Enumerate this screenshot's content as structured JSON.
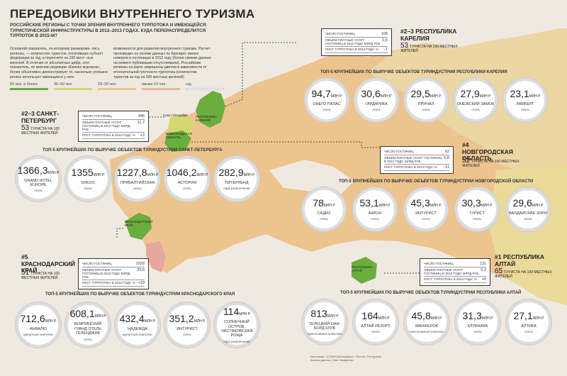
{
  "title": "ПЕРЕДОВИКИ ВНУТРЕННЕГО ТУРИЗМА",
  "subtitle": "РОССИЙСКИЕ РЕГИОНЫ С ТОЧКИ ЗРЕНИЯ ВНУТРЕННЕГО ТУРПОТОКА И ИМЕЮЩЕЙСЯ ТУРИСТИЧЕСКОЙ ИНФРАСТРУКТУРЫ В 2012–2013 ГОДАХ. КУДА ПЕРЕРАСПРЕДЕЛИТСЯ ТУРПОТОК В 2015-М?",
  "intro_left": "Основной показатель, по которому ранжирова- лись регионы, — количество туристов, посетивших субъект федерации за год, в пересчете на 100 мест- ных жителей. В отличие от абсолютных цифр, этот показатель, по мнению редакции «Бизнес-журнала», более объективно демонстрирует то, насколько успешно регион использует имеющиеся у него",
  "intro_right": "возможности для развития внутреннего туризма. Расчет произведен на основе данных по брониро- ванию номеров в гостиницах в 2012 году (более свежие данные на момент публикации отсутствовали). Российские регионы на карте закрашены цветом в зависимости от относительной плотности турпотока (количества туристов за год на 100 местных жителей)",
  "legend": [
    {
      "label": "50 чел. и более",
      "color": "#6aae3d"
    },
    {
      "label": "30–50 чел.",
      "color": "#d3d870"
    },
    {
      "label": "10–30 чел.",
      "color": "#edc489"
    },
    {
      "label": "менее 10 чел.",
      "color": "#e8b98c"
    },
    {
      "label": "н/д",
      "color": "#efe9e1"
    }
  ],
  "stat_labels": {
    "tourists": "ЧИСЛО ГОСТИНИЦ",
    "services": "ОБЪЕМ ПЛАТНЫХ УСЛУГ ГОСТИНИЦ В 2012 ГОДУ, МЛРД РУБ.",
    "growth": "РОСТ ТУРПОТОКА В 2013 ГОДУ, %"
  },
  "tourists_suffix": "ТУРИСТА НА 100 МЕСТНЫХ ЖИТЕЛЕЙ",
  "hotel": "отель",
  "regions": {
    "karelia": {
      "rank": "#2–3 РЕСПУБЛИКА КАРЕЛИЯ",
      "stats": [
        "106",
        "0,6",
        "−1"
      ],
      "tourists": "53",
      "map_label": "РЕСПУБЛИКА КАРЕЛИЯ",
      "section": "ТОП-5 КРУПНЕЙШИХ ПО ВЫРУЧКЕ ОБЪЕКТОВ ТУРИНДУСТРИИ РЕСПУБЛИКИ КАРЕЛИЯ",
      "items": [
        {
          "v": "94,7",
          "u": "МЛН Р",
          "n": "ОНЕГО ПАЛАС",
          "t": "отель"
        },
        {
          "v": "30,6",
          "u": "МЛН Р",
          "n": "ГАРДАРИКА",
          "t": "отель"
        },
        {
          "v": "29,5",
          "u": "МЛН Р",
          "n": "ПРИЧАЛ",
          "t": "отель"
        },
        {
          "v": "27,9",
          "u": "МЛН Р",
          "n": "ОНЕЖСКИЙ ЗАМОК",
          "t": "отель"
        },
        {
          "v": "23,1",
          "u": "МЛН Р",
          "n": "ЛАМБЕРГ",
          "t": "отель"
        }
      ]
    },
    "spb": {
      "rank": "#2–3 САНКТ-ПЕТЕРБУРГ",
      "stats": [
        "346",
        "11,7",
        "+3"
      ],
      "tourists": "53",
      "map_label": "Санкт-Петербург",
      "section": "ТОП-5 КРУПНЕЙШИХ ПО ВЫРУЧКЕ ОБЪЕКТОВ ТУРИНДУСТРИИ САНКТ-ПЕТЕРБУРГА",
      "items": [
        {
          "v": "1366,3",
          "u": "МЛН Р",
          "n": "GRAND HOTEL EUROPE",
          "t": "отель"
        },
        {
          "v": "1355",
          "u": "МЛН Р",
          "n": "SOKOS",
          "t": "отель"
        },
        {
          "v": "1227,8",
          "u": "МЛН Р",
          "n": "ПРИБАЛТИЙСКАЯ",
          "t": "отель"
        },
        {
          "v": "1046,2",
          "u": "МЛН Р",
          "n": "АСТОРИЯ",
          "t": "отель"
        },
        {
          "v": "282,9",
          "u": "МЛН Р",
          "n": "ПИТЕРЛЕНД",
          "t": "парк развлечений"
        }
      ]
    },
    "novgorod": {
      "rank": "#4 НОВГОРОДСКАЯ ОБЛАСТЬ",
      "stats": [
        "62",
        "0,6",
        "−11"
      ],
      "tourists": "52",
      "map_label": "НОВГОРОДСКАЯ ОБЛАСТЬ",
      "section": "ТОП-5 КРУПНЕЙШИХ ПО ВЫРУЧКЕ ОБЪЕКТОВ ТУРИНДУСТРИИ НОВГОРОДСКОЙ ОБЛАСТИ",
      "items": [
        {
          "v": "78",
          "u": "МЛН Р",
          "n": "САДКО",
          "t": "отель"
        },
        {
          "v": "53,1",
          "u": "МЛН Р",
          "n": "АКРОН",
          "t": "отель"
        },
        {
          "v": "45,3",
          "u": "МЛН Р",
          "n": "ИНТУРИСТ",
          "t": "отель"
        },
        {
          "v": "30,3",
          "u": "МЛН Р",
          "n": "ТУРИСТ",
          "t": "отель"
        },
        {
          "v": "29,6",
          "u": "МЛН Р",
          "n": "ВАЛДАЙСКИЕ ЗОРИ",
          "t": "отель"
        }
      ]
    },
    "krasnodar": {
      "rank": "#5 КРАСНОДАРСКИЙ КРАЙ",
      "stats": [
        "1029",
        "20,6",
        "+10"
      ],
      "tourists": "51",
      "map_label": "КРАСНОДАРСКИЙ КРАЙ",
      "section": "ТОП-5 КРУПНЕЙШИХ ПО ВЫРУЧКЕ ОБЪЕКТОВ ТУРИНДУСТРИИ КРАСНОДАРСКОГО КРАЯ",
      "items": [
        {
          "v": "712,6",
          "u": "МЛН Р",
          "n": "АНВАЛЮ",
          "t": "курортный комплекс"
        },
        {
          "v": "608,1",
          "u": "МЛН Р",
          "n": "КЕМПИНСКИЙ ГРАНД ОТЕЛЬ ГЕЛЕНДЖИК",
          "t": "отель"
        },
        {
          "v": "432,4",
          "u": "МЛН Р",
          "n": "НАДЕЖДА",
          "t": "курортный комплекс"
        },
        {
          "v": "351,2",
          "u": "МЛН Р",
          "n": "ИНТУРИСТ",
          "t": "отель"
        },
        {
          "v": "114",
          "u": "МЛН Р",
          "n": "СОЛНЕЧНЫЙ ОСТРОВ, ЧИСТЯКОВСКАЯ РОЩА",
          "t": "парк развлечений"
        }
      ]
    },
    "altai": {
      "rank": "#1 РЕСПУБЛИКА АЛТАЙ",
      "stats": [
        "131",
        "0,2",
        "+6"
      ],
      "tourists": "65",
      "map_label": "РЕСПУБЛИКА АЛТАЙ",
      "section": "ТОП-5 КРУПНЕЙШИХ ПО ВЫРУЧКЕ ОБЪЕКТОВ ТУРИНДУСТРИИ РЕСПУБЛИКИ АЛТАЙ",
      "items": [
        {
          "v": "813",
          "u": "МЛН Р",
          "n": "ТЕЛЕЦКИЙ ОАН-БОРД КЛУБ",
          "t": "горнолыжный комплекс"
        },
        {
          "v": "164",
          "u": "МЛН Р",
          "n": "АЛТАЙ-РЕЗОРТ",
          "t": "отель"
        },
        {
          "v": "45,8",
          "u": "МЛН Р",
          "n": "МАНЖЕРОК",
          "t": "горнолыжный комплекс"
        },
        {
          "v": "31,3",
          "u": "МЛН Р",
          "n": "КЛУБНИКА",
          "t": "отель"
        },
        {
          "v": "27,1",
          "u": "МЛН Р",
          "n": "АЛТИКА",
          "t": "отель"
        }
      ]
    }
  },
  "footer": "Источники: «СПАРК-Интерфакс», Росстат, Ростуризм\nАнализ данных: Олег Назаренко"
}
